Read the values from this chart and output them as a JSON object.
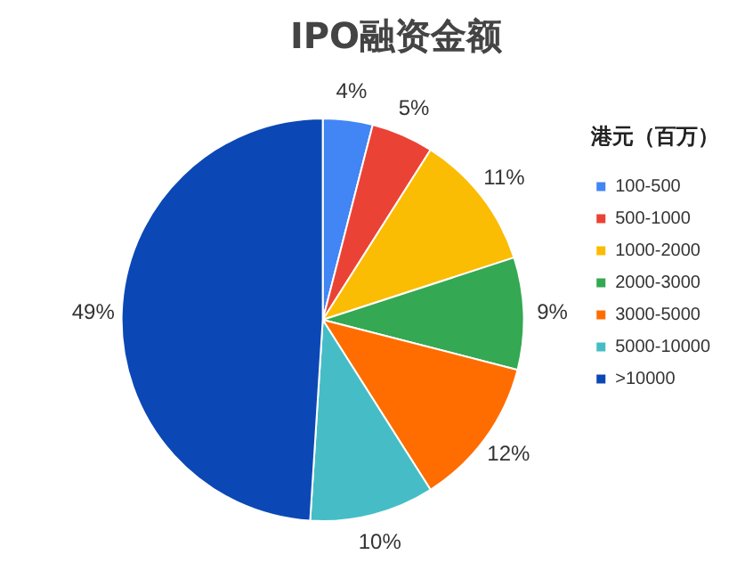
{
  "chart_data": {
    "type": "pie",
    "title": "IPO融资金额",
    "legend_title": "港元（百万）",
    "legend": "right",
    "categories": [
      "100-500",
      "500-1000",
      "1000-2000",
      "2000-3000",
      "3000-5000",
      "5000-10000",
      ">10000"
    ],
    "values": [
      4,
      5,
      11,
      9,
      12,
      10,
      49
    ],
    "value_labels": [
      "4%",
      "5%",
      "11%",
      "9%",
      "12%",
      "10%",
      "49%"
    ],
    "colors": [
      "#4285f4",
      "#ea4335",
      "#fbbc04",
      "#34a853",
      "#ff6d01",
      "#46bdc6",
      "#0b48b5"
    ]
  }
}
